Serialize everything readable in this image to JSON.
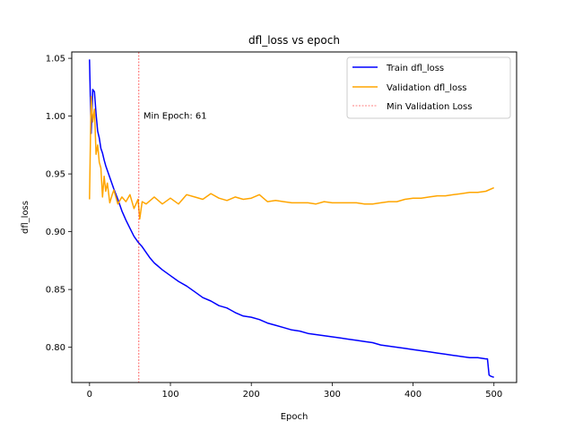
{
  "chart_data": {
    "type": "line",
    "title": "dfl_loss vs epoch",
    "xlabel": "Epoch",
    "ylabel": "dfl_loss",
    "xlim": [
      -22,
      528
    ],
    "ylim": [
      0.7695,
      1.0555
    ],
    "xticks": [
      0,
      100,
      200,
      300,
      400,
      500
    ],
    "xtick_labels": [
      "0",
      "100",
      "200",
      "300",
      "400",
      "500"
    ],
    "yticks": [
      0.8,
      0.85,
      0.9,
      0.95,
      1.0,
      1.05
    ],
    "ytick_labels": [
      "0.80",
      "0.85",
      "0.90",
      "0.95",
      "1.00",
      "1.05"
    ],
    "grid": false,
    "legend_position": "top-right",
    "series": [
      {
        "name": "Train dfl_loss",
        "color": "#0000ff",
        "x": [
          0,
          2,
          4,
          6,
          8,
          10,
          12,
          14,
          16,
          18,
          20,
          25,
          30,
          35,
          40,
          45,
          50,
          55,
          60,
          65,
          70,
          75,
          80,
          90,
          100,
          110,
          120,
          130,
          140,
          150,
          160,
          170,
          180,
          190,
          200,
          210,
          220,
          230,
          240,
          250,
          260,
          270,
          280,
          290,
          300,
          310,
          320,
          330,
          340,
          350,
          360,
          370,
          380,
          390,
          400,
          410,
          420,
          430,
          440,
          450,
          460,
          470,
          480,
          490,
          492,
          494,
          496,
          500
        ],
        "y": [
          1.049,
          0.985,
          1.023,
          1.021,
          1.002,
          0.987,
          0.981,
          0.972,
          0.968,
          0.962,
          0.957,
          0.947,
          0.937,
          0.928,
          0.918,
          0.91,
          0.903,
          0.896,
          0.891,
          0.887,
          0.882,
          0.877,
          0.873,
          0.867,
          0.862,
          0.857,
          0.853,
          0.848,
          0.843,
          0.84,
          0.836,
          0.834,
          0.83,
          0.827,
          0.826,
          0.824,
          0.821,
          0.819,
          0.817,
          0.815,
          0.814,
          0.812,
          0.811,
          0.81,
          0.809,
          0.808,
          0.807,
          0.806,
          0.805,
          0.804,
          0.802,
          0.801,
          0.8,
          0.799,
          0.798,
          0.797,
          0.796,
          0.795,
          0.794,
          0.793,
          0.792,
          0.791,
          0.791,
          0.79,
          0.79,
          0.776,
          0.775,
          0.774
        ]
      },
      {
        "name": "Validation dfl_loss",
        "color": "#ffa500",
        "x": [
          0,
          2,
          4,
          6,
          8,
          10,
          12,
          14,
          16,
          18,
          20,
          22,
          25,
          28,
          30,
          35,
          40,
          45,
          50,
          55,
          60,
          62,
          65,
          70,
          80,
          90,
          100,
          110,
          120,
          130,
          140,
          150,
          160,
          170,
          180,
          190,
          200,
          210,
          220,
          230,
          240,
          250,
          260,
          270,
          280,
          290,
          300,
          310,
          320,
          330,
          340,
          350,
          360,
          370,
          380,
          390,
          400,
          410,
          420,
          430,
          440,
          450,
          460,
          470,
          480,
          490,
          500
        ],
        "y": [
          0.928,
          1.017,
          0.995,
          1.006,
          0.967,
          0.975,
          0.96,
          0.955,
          0.93,
          0.948,
          0.935,
          0.942,
          0.925,
          0.932,
          0.936,
          0.924,
          0.93,
          0.926,
          0.932,
          0.92,
          0.928,
          0.911,
          0.926,
          0.924,
          0.93,
          0.924,
          0.929,
          0.924,
          0.932,
          0.93,
          0.928,
          0.933,
          0.929,
          0.927,
          0.93,
          0.928,
          0.929,
          0.932,
          0.926,
          0.927,
          0.926,
          0.925,
          0.925,
          0.925,
          0.924,
          0.926,
          0.925,
          0.925,
          0.925,
          0.925,
          0.924,
          0.924,
          0.925,
          0.926,
          0.926,
          0.928,
          0.929,
          0.929,
          0.93,
          0.931,
          0.931,
          0.932,
          0.933,
          0.934,
          0.934,
          0.935,
          0.938
        ]
      }
    ],
    "vline": {
      "x": 61,
      "color": "#ff0000",
      "legend_label": "Min Validation Loss",
      "annotation": "Min Epoch: 61",
      "annotation_y": 1.0
    }
  }
}
